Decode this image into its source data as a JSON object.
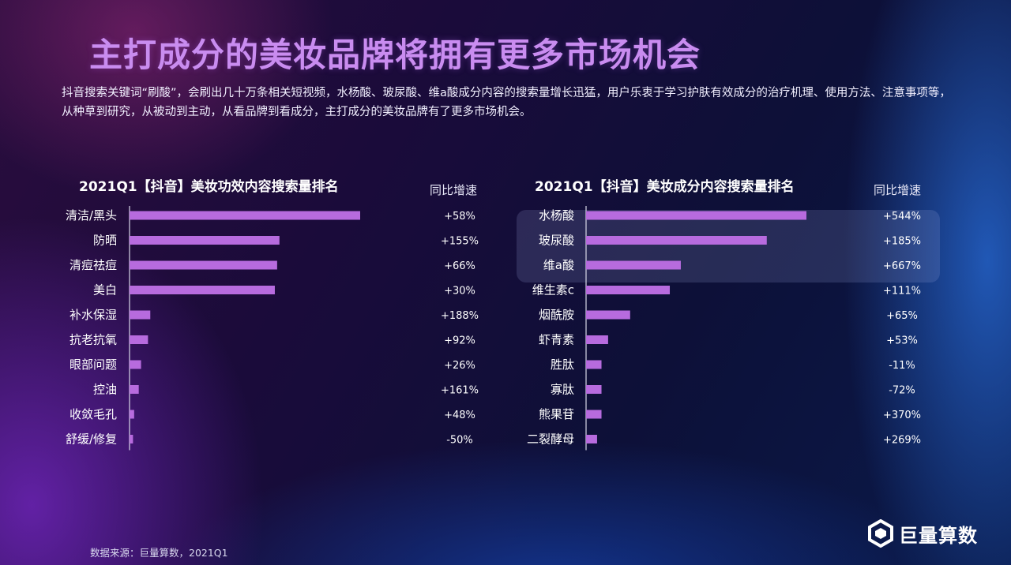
{
  "title": "主打成分的美妆品牌将拥有更多市场机会",
  "description": "抖音搜索关键词“刷酸”，会刷出几十万条相关短视频，水杨酸、玻尿酸、维a酸成分内容的搜索量增长迅猛，用户乐衷于学习护肤有效成分的治疗机理、使用方法、注意事项等，从种草到研究，从被动到主动，从看品牌到看成分，主打成分的美妆品牌有了更多市场机会。",
  "source": "数据来源：巨量算数，2021Q1",
  "logo_text": "巨量算数",
  "colors": {
    "bar": "#b76bde",
    "title": "#c98cf0",
    "highlight": "rgba(160,170,230,0.18)"
  },
  "chart_data": [
    {
      "type": "bar",
      "orientation": "horizontal",
      "title": "2021Q1【抖音】美妆功效内容搜索量排名",
      "yoy_header": "同比增速",
      "categories": [
        "清洁/黑头",
        "防晒",
        "清痘祛痘",
        "美白",
        "补水保湿",
        "抗老抗氧",
        "眼部问题",
        "控油",
        "收敛毛孔",
        "舒缓/修复"
      ],
      "values": [
        100,
        65,
        64,
        63,
        9,
        8,
        5,
        4,
        2,
        1.5
      ],
      "yoy": [
        "+58%",
        "+155%",
        "+66%",
        "+30%",
        "+188%",
        "+92%",
        "+26%",
        "+161%",
        "+48%",
        "-50%"
      ],
      "xlim": [
        0,
        100
      ]
    },
    {
      "type": "bar",
      "orientation": "horizontal",
      "title": "2021Q1【抖音】美妆成分内容搜索量排名",
      "yoy_header": "同比增速",
      "categories": [
        "水杨酸",
        "玻尿酸",
        "维a酸",
        "维生素c",
        "烟酰胺",
        "虾青素",
        "胜肽",
        "寡肽",
        "熊果苷",
        "二裂酵母"
      ],
      "values": [
        100,
        82,
        43,
        38,
        20,
        10,
        7,
        7,
        7,
        5
      ],
      "yoy": [
        "+544%",
        "+185%",
        "+667%",
        "+111%",
        "+65%",
        "+53%",
        "-11%",
        "-72%",
        "+370%",
        "+269%"
      ],
      "highlighted": [
        "水杨酸",
        "玻尿酸",
        "维a酸"
      ],
      "xlim": [
        0,
        100
      ]
    }
  ]
}
